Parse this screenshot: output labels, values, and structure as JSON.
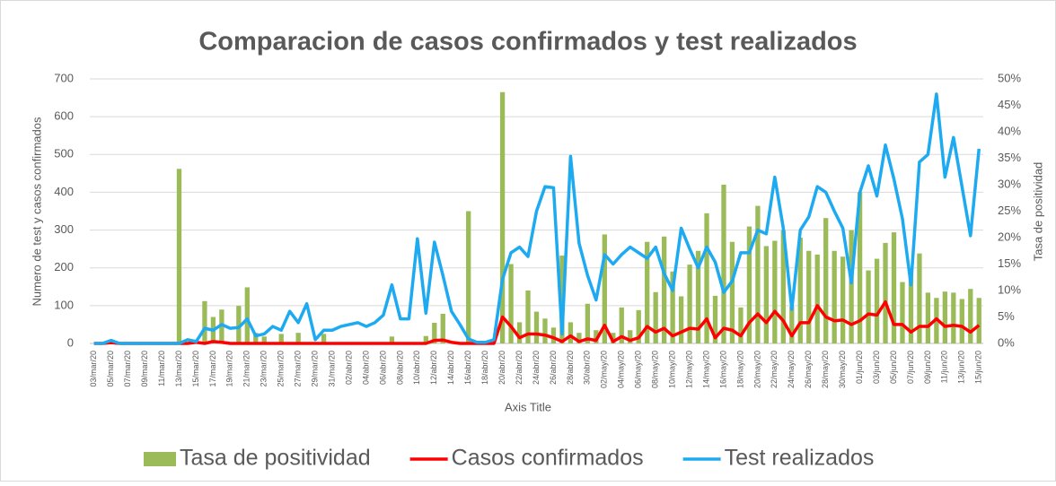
{
  "chart_data": {
    "type": "bar",
    "title": "Comparacion de casos confirmados y test realizados",
    "xlabel": "Axis Title",
    "ylabel": "Numero de test y casos confirmados",
    "y2label": "Tasa de positividad",
    "categories": [
      "03/mar/20",
      null,
      "05/mar/20",
      null,
      "07/mar/20",
      null,
      "09/mar/20",
      null,
      "11/mar/20",
      null,
      "13/mar/20",
      null,
      "15/mar/20",
      null,
      "17/mar/20",
      null,
      "19/mar/20",
      null,
      "21/mar/20",
      null,
      "23/mar/20",
      null,
      "25/mar/20",
      null,
      "27/mar/20",
      null,
      "29/mar/20",
      null,
      "31/mar/20",
      null,
      "02/abr/20",
      null,
      "04/abr/20",
      null,
      "06/abr/20",
      null,
      "08/abr/20",
      null,
      "10/abr/20",
      null,
      "12/abr/20",
      null,
      "14/abr/20",
      null,
      "16/abr/20",
      null,
      "18/abr/20",
      null,
      "20/abr/20",
      null,
      "22/abr/20",
      null,
      "24/abr/20",
      null,
      "26/abr/20",
      null,
      "28/abr/20",
      null,
      "30/abr/20",
      null,
      "02/may/20",
      null,
      "04/may/20",
      null,
      "06/may/20",
      null,
      "08/may/20",
      null,
      "10/may/20",
      null,
      "12/may/20",
      null,
      "14/may/20",
      null,
      "16/may/20",
      null,
      "18/may/20",
      null,
      "20/may/20",
      null,
      "22/may/20",
      null,
      "24/may/20",
      null,
      "26/may/20",
      null,
      "28/may/20",
      null,
      "30/may/20",
      null,
      "01/jun/20",
      null,
      "03/jun/20",
      null,
      "05/jun/20",
      null,
      "07/jun/20",
      null,
      "09/jun/20",
      null,
      "11/jun/20",
      null,
      "13/jun/20",
      null,
      "15/jun/20"
    ],
    "series": [
      {
        "name": "Tasa de positividad",
        "type": "bar",
        "axis": "y2",
        "color": "#9bbb59",
        "values": [
          0,
          0,
          0,
          0,
          0,
          0,
          0,
          0,
          0,
          0,
          33,
          0,
          0,
          8,
          5,
          6.4,
          0,
          7.1,
          10.6,
          2,
          1.3,
          0,
          1.8,
          0,
          2,
          0,
          0,
          1.8,
          0,
          0,
          0,
          0,
          0,
          0,
          0,
          1.3,
          0,
          0,
          0,
          1.4,
          3.9,
          5.6,
          0,
          0,
          25,
          0,
          0,
          0,
          47.5,
          15,
          4,
          10,
          6,
          4.7,
          3,
          16.6,
          4,
          2,
          7.5,
          2.5,
          20.6,
          2,
          6.8,
          2.5,
          6.3,
          19.2,
          9.7,
          20.2,
          13.6,
          8.9,
          14.9,
          17.5,
          24.6,
          9,
          30,
          19.2,
          6.8,
          22.1,
          26,
          18.4,
          19.4,
          21.4,
          7,
          20,
          17.5,
          16.8,
          23.7,
          17.5,
          16.4,
          21.4,
          28.6,
          13.8,
          16,
          19,
          21,
          11.6,
          14.2,
          17,
          9.6,
          8.6,
          9.8,
          9.6,
          8.4,
          10.3,
          8.6
        ]
      },
      {
        "name": "Casos confirmados",
        "type": "line",
        "color": "#ff0000",
        "values": [
          0,
          0,
          2,
          0,
          0,
          0,
          0,
          0,
          0,
          0,
          0,
          0,
          3,
          0,
          5,
          3,
          0,
          0,
          0,
          0,
          0,
          0,
          0,
          0,
          0,
          0,
          0,
          0,
          0,
          0,
          0,
          0,
          0,
          0,
          0,
          0,
          0,
          0,
          0,
          0,
          8,
          9,
          3,
          0,
          0,
          0,
          0,
          0,
          70,
          45,
          15,
          25,
          25,
          22,
          15,
          5,
          20,
          5,
          12,
          8,
          48,
          5,
          18,
          8,
          15,
          45,
          30,
          40,
          20,
          30,
          40,
          38,
          65,
          15,
          40,
          35,
          20,
          55,
          78,
          55,
          85,
          60,
          20,
          55,
          55,
          100,
          70,
          60,
          62,
          50,
          60,
          78,
          75,
          110,
          50,
          50,
          30,
          45,
          45,
          65,
          45,
          48,
          45,
          30,
          48
        ]
      },
      {
        "name": "Test realizados",
        "type": "line",
        "color": "#1eaaf1",
        "values": [
          0,
          0,
          8,
          0,
          0,
          0,
          0,
          0,
          0,
          0,
          0,
          10,
          5,
          40,
          35,
          50,
          40,
          42,
          65,
          20,
          25,
          45,
          35,
          85,
          55,
          105,
          10,
          35,
          35,
          45,
          50,
          55,
          45,
          55,
          75,
          155,
          65,
          65,
          277,
          80,
          268,
          180,
          85,
          50,
          12,
          3,
          3,
          10,
          170,
          240,
          255,
          230,
          350,
          415,
          412,
          25,
          495,
          265,
          180,
          115,
          235,
          210,
          235,
          255,
          240,
          225,
          255,
          185,
          140,
          305,
          250,
          200,
          255,
          215,
          135,
          165,
          240,
          240,
          300,
          290,
          440,
          305,
          90,
          300,
          335,
          415,
          400,
          350,
          305,
          160,
          400,
          470,
          390,
          525,
          435,
          330,
          155,
          480,
          500,
          660,
          440,
          545,
          415,
          285,
          515
        ]
      }
    ],
    "ylim": [
      0,
      700
    ],
    "yticks": [
      0,
      100,
      200,
      300,
      400,
      500,
      600,
      700
    ],
    "y2lim": [
      0,
      50
    ],
    "y2ticks": [
      {
        "value": 0,
        "label": "0%"
      },
      {
        "value": 5,
        "label": "5%"
      },
      {
        "value": 10,
        "label": "10%"
      },
      {
        "value": 15,
        "label": "15%"
      },
      {
        "value": 20,
        "label": "20%"
      },
      {
        "value": 25,
        "label": "25%"
      },
      {
        "value": 30,
        "label": "30%"
      },
      {
        "value": 35,
        "label": "35%"
      },
      {
        "value": 40,
        "label": "40%"
      },
      {
        "value": 45,
        "label": "45%"
      },
      {
        "value": 50,
        "label": "50%"
      }
    ],
    "grid": true,
    "legend": "bottom"
  }
}
